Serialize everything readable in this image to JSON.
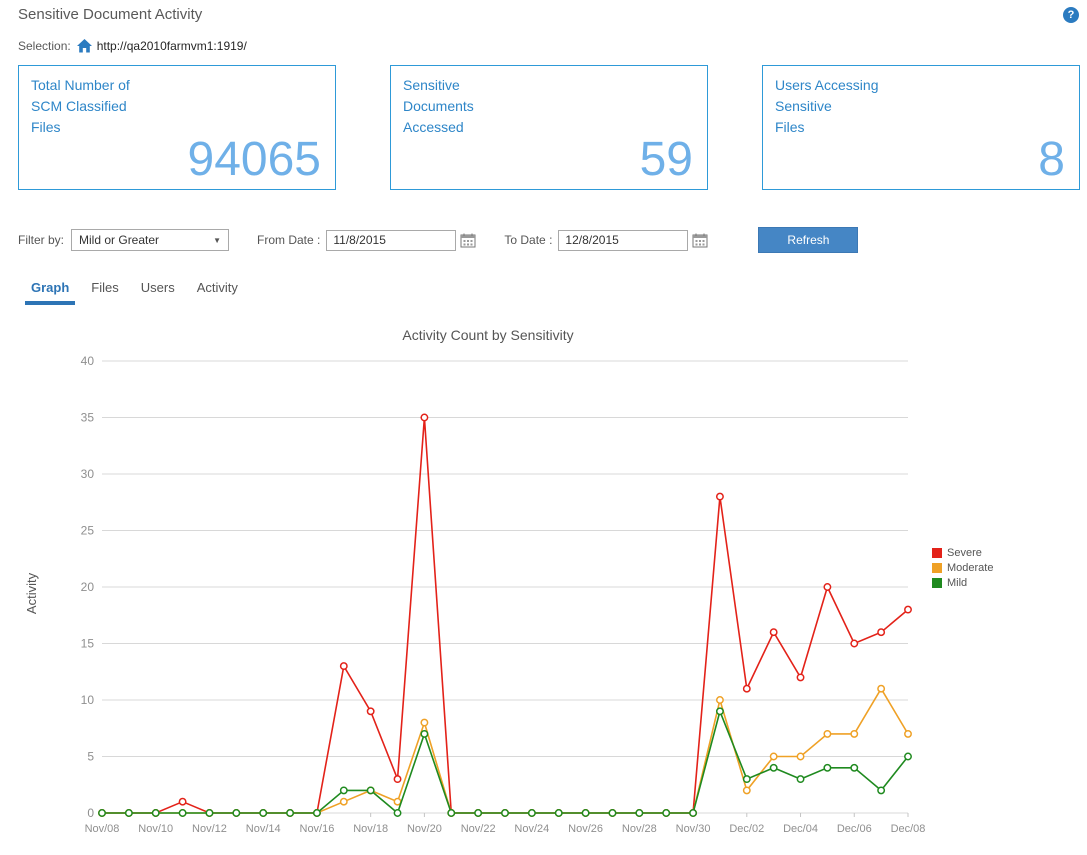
{
  "header": {
    "title": "Sensitive Document Activity"
  },
  "icons": {
    "help": "?",
    "chevron_down": "▼"
  },
  "selection": {
    "label": "Selection:",
    "url": "http://qa2010farmvm1:1919/"
  },
  "cards": [
    {
      "title_lines": [
        "Total Number of",
        "SCM Classified",
        "Files"
      ],
      "value": "94065"
    },
    {
      "title_lines": [
        "Sensitive",
        "Documents",
        "Accessed"
      ],
      "value": "59"
    },
    {
      "title_lines": [
        "Users Accessing",
        "Sensitive",
        "Files"
      ],
      "value": "8"
    }
  ],
  "filters": {
    "filter_by_label": "Filter by:",
    "filter_value": "Mild or Greater",
    "from_label": "From Date :",
    "from_value": "11/8/2015",
    "to_label": "To Date :",
    "to_value": "12/8/2015",
    "refresh_label": "Refresh"
  },
  "tabs": [
    {
      "label": "Graph",
      "active": true
    },
    {
      "label": "Files",
      "active": false
    },
    {
      "label": "Users",
      "active": false
    },
    {
      "label": "Activity",
      "active": false
    }
  ],
  "colors": {
    "card_border": "#2e9ad8",
    "card_title": "#2e86c8",
    "card_value": "#6fb0e8",
    "refresh_button": "#4586c5",
    "active_tab": "#2d74b5",
    "severe": "#e32219",
    "moderate": "#efa126",
    "mild": "#1f8a1f"
  },
  "chart_data": {
    "type": "line",
    "title": "Activity Count by Sensitivity",
    "xlabel": "",
    "ylabel": "Activity",
    "ylim": [
      0,
      40
    ],
    "yticks": [
      0,
      5,
      10,
      15,
      20,
      25,
      30,
      35,
      40
    ],
    "grid": true,
    "legend_position": "right",
    "x_labels": [
      "Nov/08",
      "Nov/10",
      "Nov/12",
      "Nov/14",
      "Nov/16",
      "Nov/18",
      "Nov/20",
      "Nov/22",
      "Nov/24",
      "Nov/26",
      "Nov/28",
      "Nov/30",
      "Dec/02",
      "Dec/04",
      "Dec/06",
      "Dec/08"
    ],
    "x_label_step": 2,
    "series": [
      {
        "name": "Severe",
        "color": "#e32219",
        "values": [
          0,
          0,
          0,
          1,
          0,
          0,
          0,
          0,
          0,
          13,
          9,
          3,
          35,
          0,
          0,
          0,
          0,
          0,
          0,
          0,
          0,
          0,
          0,
          28,
          11,
          16,
          12,
          20,
          15,
          16,
          18
        ]
      },
      {
        "name": "Moderate",
        "color": "#efa126",
        "values": [
          0,
          0,
          0,
          0,
          0,
          0,
          0,
          0,
          0,
          1,
          2,
          1,
          8,
          0,
          0,
          0,
          0,
          0,
          0,
          0,
          0,
          0,
          0,
          10,
          2,
          5,
          5,
          7,
          7,
          11,
          7
        ]
      },
      {
        "name": "Mild",
        "color": "#1f8a1f",
        "values": [
          0,
          0,
          0,
          0,
          0,
          0,
          0,
          0,
          0,
          2,
          2,
          0,
          7,
          0,
          0,
          0,
          0,
          0,
          0,
          0,
          0,
          0,
          0,
          9,
          3,
          4,
          3,
          4,
          4,
          2,
          5
        ]
      }
    ]
  }
}
